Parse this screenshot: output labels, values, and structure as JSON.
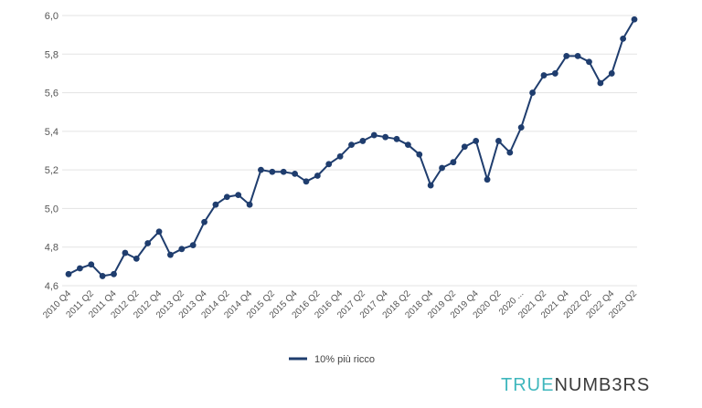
{
  "chart_data": {
    "type": "line",
    "title": "",
    "xlabel": "",
    "ylabel": "",
    "ylim": [
      4.6,
      6.0
    ],
    "yticks": [
      "4,6",
      "4,8",
      "5,0",
      "5,2",
      "5,4",
      "5,6",
      "5,8",
      "6,0"
    ],
    "grid": "horizontal",
    "legend_position": "bottom",
    "series": [
      {
        "name": "10% più ricco",
        "color": "#1f3d6e",
        "values": [
          4.66,
          4.69,
          4.71,
          4.65,
          4.66,
          4.77,
          4.74,
          4.82,
          4.88,
          4.76,
          4.79,
          4.81,
          4.93,
          5.02,
          5.06,
          5.07,
          5.02,
          5.2,
          5.19,
          5.19,
          5.18,
          5.14,
          5.17,
          5.23,
          5.27,
          5.33,
          5.35,
          5.38,
          5.37,
          5.36,
          5.33,
          5.28,
          5.12,
          5.21,
          5.24,
          5.32,
          5.35,
          5.15,
          5.35,
          5.29,
          5.42,
          5.6,
          5.69,
          5.7,
          5.79,
          5.79,
          5.76,
          5.65,
          5.7,
          5.88,
          5.98
        ]
      }
    ],
    "x_tick_labels": [
      "2010 Q4",
      "2011 Q2",
      "2011 Q4",
      "2012 Q2",
      "2012 Q4",
      "2013 Q2",
      "2013 Q4",
      "2014 Q2",
      "2014 Q4",
      "2015 Q2",
      "2015 Q4",
      "2016 Q2",
      "2016 Q4",
      "2017 Q2",
      "2017 Q4",
      "2018 Q2",
      "2018 Q4",
      "2019 Q2",
      "2019 Q4",
      "2020 Q2",
      "2020 ...",
      "2021 Q2",
      "2021 Q4",
      "2022 Q2",
      "2022 Q4",
      "2023 Q2"
    ]
  },
  "legend": {
    "label": "10% più ricco"
  },
  "brand": {
    "part1": "TRUE",
    "part2": "NUMB3RS"
  }
}
